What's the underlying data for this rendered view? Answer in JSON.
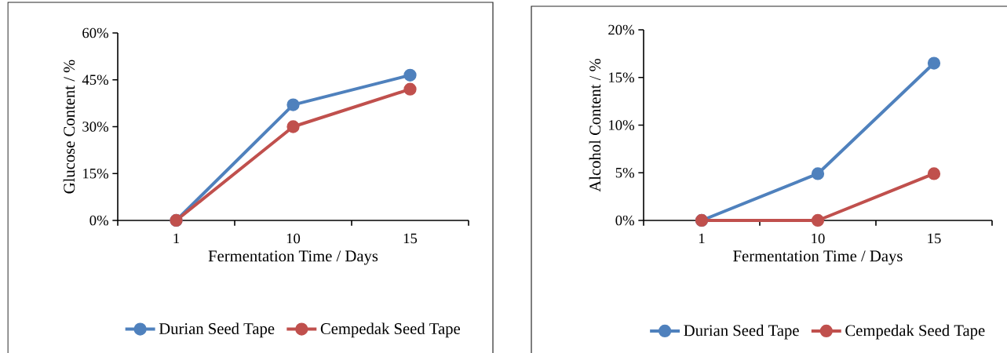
{
  "chart_data": [
    {
      "type": "line",
      "xlabel": "Fermentation Time / Days",
      "ylabel": "Glucose Content / %",
      "categories": [
        "1",
        "10",
        "15"
      ],
      "series": [
        {
          "name": "Durian Seed Tape",
          "color": "#4f81bd",
          "values": [
            0,
            37,
            46.5
          ]
        },
        {
          "name": "Cempedak Seed Tape",
          "color": "#c0504d",
          "values": [
            0,
            30,
            42
          ]
        }
      ],
      "ylim": [
        0,
        60
      ],
      "yticks": [
        {
          "value": 0,
          "label": "0%"
        },
        {
          "value": 15,
          "label": "15%"
        },
        {
          "value": 30,
          "label": "30%"
        },
        {
          "value": 45,
          "label": "45%"
        },
        {
          "value": 60,
          "label": "60%"
        }
      ],
      "legend": "bottom",
      "marker": "circle",
      "line_style": "solid"
    },
    {
      "type": "line",
      "xlabel": "Fermentation Time / Days",
      "ylabel": "Alcohol Content / %",
      "categories": [
        "1",
        "10",
        "15"
      ],
      "series": [
        {
          "name": "Durian Seed Tape",
          "color": "#4f81bd",
          "values": [
            0,
            4.9,
            16.5
          ]
        },
        {
          "name": "Cempedak Seed Tape",
          "color": "#c0504d",
          "values": [
            0,
            0,
            4.9
          ]
        }
      ],
      "ylim": [
        0,
        20
      ],
      "yticks": [
        {
          "value": 0,
          "label": "0%"
        },
        {
          "value": 5,
          "label": "5%"
        },
        {
          "value": 10,
          "label": "10%"
        },
        {
          "value": 15,
          "label": "15%"
        },
        {
          "value": 20,
          "label": "20%"
        }
      ],
      "legend": "bottom",
      "marker": "circle",
      "line_style": "solid"
    }
  ]
}
